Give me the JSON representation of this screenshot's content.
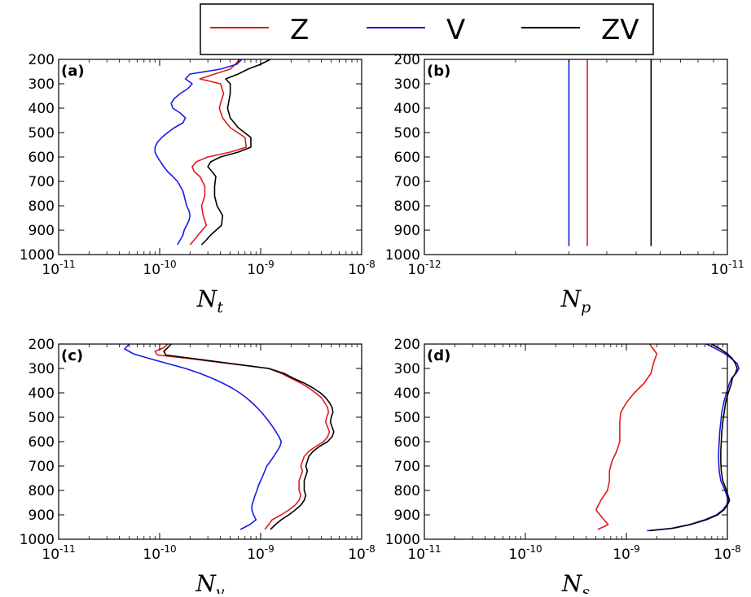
{
  "legend": {
    "items": [
      {
        "label": "Z",
        "color": "#e41a1c"
      },
      {
        "label": "V",
        "color": "#1a1ae6"
      },
      {
        "label": "ZV",
        "color": "#000000"
      }
    ]
  },
  "chart_data": [
    {
      "type": "line",
      "panel_label": "(a)",
      "xlabel": "N",
      "xlabel_sub": "t",
      "xscale": "log",
      "xlim": [
        1e-11,
        1e-08
      ],
      "xticks": [
        {
          "base": "10",
          "exp": "-11",
          "value": 1e-11
        },
        {
          "base": "10",
          "exp": "-10",
          "value": 1e-10
        },
        {
          "base": "10",
          "exp": "-9",
          "value": 1e-09
        },
        {
          "base": "10",
          "exp": "-8",
          "value": 1e-08
        }
      ],
      "ylim": [
        200,
        1000
      ],
      "yinverted": true,
      "yticks": [
        "200",
        "300",
        "400",
        "500",
        "600",
        "700",
        "800",
        "900",
        "1000"
      ],
      "series": [
        {
          "name": "Z",
          "color": "#e41a1c",
          "y": [
            200,
            220,
            240,
            260,
            280,
            300,
            340,
            380,
            400,
            440,
            480,
            520,
            560,
            580,
            600,
            620,
            640,
            660,
            680,
            720,
            760,
            800,
            840,
            880,
            920,
            940,
            960
          ],
          "x": [
            6.2e-10,
            5.6e-10,
            5e-10,
            3.5e-10,
            2.5e-10,
            4e-10,
            4.3e-10,
            4e-10,
            3.9e-10,
            4.2e-10,
            5e-10,
            7e-10,
            7.2e-10,
            5e-10,
            3e-10,
            2.3e-10,
            2.1e-10,
            2.2e-10,
            2.5e-10,
            2.8e-10,
            2.8e-10,
            2.6e-10,
            2.7e-10,
            2.9e-10,
            2.4e-10,
            2.2e-10,
            2e-10
          ]
        },
        {
          "name": "V",
          "color": "#1a1ae6",
          "y": [
            200,
            220,
            240,
            260,
            280,
            300,
            320,
            340,
            360,
            380,
            400,
            420,
            440,
            460,
            480,
            500,
            520,
            540,
            560,
            580,
            600,
            620,
            640,
            660,
            680,
            700,
            720,
            740,
            760,
            780,
            800,
            820,
            840,
            860,
            880,
            900,
            920,
            940,
            960
          ],
          "x": [
            6.5e-10,
            5.8e-10,
            4e-10,
            2e-10,
            1.8e-10,
            2.1e-10,
            1.9e-10,
            1.6e-10,
            1.4e-10,
            1.3e-10,
            1.35e-10,
            1.6e-10,
            1.8e-10,
            1.7e-10,
            1.4e-10,
            1.2e-10,
            1.05e-10,
            9.5e-11,
            9e-11,
            9e-11,
            9.5e-11,
            1.02e-10,
            1.1e-10,
            1.2e-10,
            1.35e-10,
            1.5e-10,
            1.6e-10,
            1.7e-10,
            1.75e-10,
            1.8e-10,
            1.85e-10,
            1.95e-10,
            2e-10,
            1.95e-10,
            1.85e-10,
            1.75e-10,
            1.7e-10,
            1.6e-10,
            1.5e-10
          ]
        },
        {
          "name": "ZV",
          "color": "#000000",
          "y": [
            200,
            220,
            240,
            260,
            280,
            300,
            340,
            380,
            400,
            440,
            480,
            520,
            560,
            580,
            600,
            620,
            640,
            660,
            680,
            720,
            760,
            800,
            840,
            880,
            920,
            940,
            960
          ],
          "x": [
            1.25e-09,
            1e-09,
            7.5e-10,
            6e-10,
            4.5e-10,
            5e-10,
            5e-10,
            4.8e-10,
            4.7e-10,
            5e-10,
            6e-10,
            8e-10,
            8e-10,
            6e-10,
            4e-10,
            3.2e-10,
            3e-10,
            3.3e-10,
            3.6e-10,
            3.5e-10,
            3.5e-10,
            3.7e-10,
            4.2e-10,
            4.1e-10,
            3.2e-10,
            2.9e-10,
            2.6e-10
          ]
        }
      ]
    },
    {
      "type": "line",
      "panel_label": "(b)",
      "xlabel": "N",
      "xlabel_sub": "p",
      "xscale": "log",
      "xlim": [
        1e-12,
        1e-11
      ],
      "xticks": [
        {
          "base": "10",
          "exp": "-12",
          "value": 1e-12
        },
        {
          "base": "10",
          "exp": "-11",
          "value": 1e-11
        }
      ],
      "ylim": [
        200,
        1000
      ],
      "yinverted": true,
      "yticks": [
        "200",
        "300",
        "400",
        "500",
        "600",
        "700",
        "800",
        "900",
        "1000"
      ],
      "series": [
        {
          "name": "Z",
          "color": "#e41a1c",
          "y": [
            200,
            965
          ],
          "x": [
            3.45e-12,
            3.45e-12
          ]
        },
        {
          "name": "V",
          "color": "#1a1ae6",
          "y": [
            200,
            965
          ],
          "x": [
            3e-12,
            3e-12
          ]
        },
        {
          "name": "ZV",
          "color": "#000000",
          "y": [
            200,
            965
          ],
          "x": [
            5.6e-12,
            5.6e-12
          ]
        }
      ]
    },
    {
      "type": "line",
      "panel_label": "(c)",
      "xlabel": "N",
      "xlabel_sub": "v",
      "xscale": "log",
      "xlim": [
        1e-11,
        1e-08
      ],
      "xticks": [
        {
          "base": "10",
          "exp": "-11",
          "value": 1e-11
        },
        {
          "base": "10",
          "exp": "-10",
          "value": 1e-10
        },
        {
          "base": "10",
          "exp": "-9",
          "value": 1e-09
        },
        {
          "base": "10",
          "exp": "-8",
          "value": 1e-08
        }
      ],
      "ylim": [
        200,
        1000
      ],
      "yinverted": true,
      "yticks": [
        "200",
        "300",
        "400",
        "500",
        "600",
        "700",
        "800",
        "900",
        "1000"
      ],
      "series": [
        {
          "name": "Z",
          "color": "#e41a1c",
          "y": [
            200,
            215,
            230,
            245,
            260,
            300,
            320,
            340,
            360,
            380,
            400,
            420,
            440,
            460,
            480,
            500,
            520,
            540,
            560,
            580,
            600,
            620,
            640,
            660,
            680,
            700,
            720,
            740,
            760,
            780,
            800,
            820,
            840,
            860,
            880,
            900,
            920,
            940,
            960
          ],
          "x": [
            1.2e-10,
            1.1e-10,
            9e-11,
            9.5e-11,
            2e-10,
            1.2e-09,
            1.6e-09,
            2e-09,
            2.5e-09,
            3e-09,
            3.5e-09,
            4e-09,
            4.3e-09,
            4.6e-09,
            4.7e-09,
            4.5e-09,
            4.4e-09,
            4.6e-09,
            4.8e-09,
            4.6e-09,
            4.2e-09,
            3.5e-09,
            3e-09,
            2.7e-09,
            2.6e-09,
            2.5e-09,
            2.6e-09,
            2.5e-09,
            2.4e-09,
            2.4e-09,
            2.4e-09,
            2.5e-09,
            2.4e-09,
            2.2e-09,
            1.9e-09,
            1.6e-09,
            1.3e-09,
            1.2e-09,
            1.1e-09
          ]
        },
        {
          "name": "V",
          "color": "#1a1ae6",
          "y": [
            200,
            220,
            240,
            260,
            280,
            300,
            320,
            340,
            360,
            380,
            400,
            420,
            440,
            460,
            480,
            500,
            520,
            540,
            560,
            580,
            600,
            620,
            640,
            660,
            680,
            700,
            720,
            740,
            760,
            780,
            800,
            820,
            840,
            860,
            880,
            900,
            920,
            940,
            960
          ],
          "x": [
            5e-11,
            4.5e-11,
            5.5e-11,
            8e-11,
            1.2e-10,
            1.8e-10,
            2.5e-10,
            3.3e-10,
            4.2e-10,
            5.2e-10,
            6.2e-10,
            7.2e-10,
            8.2e-10,
            9.2e-10,
            1.02e-09,
            1.12e-09,
            1.22e-09,
            1.32e-09,
            1.42e-09,
            1.52e-09,
            1.6e-09,
            1.55e-09,
            1.45e-09,
            1.35e-09,
            1.25e-09,
            1.15e-09,
            1.1e-09,
            1.05e-09,
            1e-09,
            9.5e-10,
            9.2e-10,
            8.8e-10,
            8.5e-10,
            8.2e-10,
            8.2e-10,
            8.5e-10,
            9e-10,
            7.8e-10,
            6.3e-10
          ]
        },
        {
          "name": "ZV",
          "color": "#000000",
          "y": [
            200,
            215,
            230,
            245,
            260,
            300,
            320,
            340,
            360,
            380,
            400,
            420,
            440,
            460,
            480,
            500,
            520,
            540,
            560,
            580,
            600,
            620,
            640,
            660,
            680,
            700,
            720,
            740,
            760,
            780,
            800,
            820,
            840,
            860,
            880,
            900,
            920,
            940,
            960
          ],
          "x": [
            1.3e-10,
            1.2e-10,
            1.1e-10,
            1.15e-10,
            2.2e-10,
            1.2e-09,
            1.7e-09,
            2.1e-09,
            2.7e-09,
            3.3e-09,
            3.9e-09,
            4.4e-09,
            4.8e-09,
            5.1e-09,
            5.2e-09,
            5e-09,
            4.9e-09,
            5.1e-09,
            5.3e-09,
            5.1e-09,
            4.6e-09,
            3.8e-09,
            3.3e-09,
            3e-09,
            2.9e-09,
            2.8e-09,
            2.9e-09,
            2.8e-09,
            2.7e-09,
            2.7e-09,
            2.7e-09,
            2.8e-09,
            2.7e-09,
            2.5e-09,
            2.2e-09,
            1.9e-09,
            1.6e-09,
            1.4e-09,
            1.25e-09
          ]
        }
      ]
    },
    {
      "type": "line",
      "panel_label": "(d)",
      "xlabel": "N",
      "xlabel_sub": "s",
      "xscale": "log",
      "xlim": [
        1e-11,
        1e-08
      ],
      "xticks": [
        {
          "base": "10",
          "exp": "-11",
          "value": 1e-11
        },
        {
          "base": "10",
          "exp": "-10",
          "value": 1e-10
        },
        {
          "base": "10",
          "exp": "-9",
          "value": 1e-09
        },
        {
          "base": "10",
          "exp": "-8",
          "value": 1e-08
        }
      ],
      "ylim": [
        200,
        1000
      ],
      "yinverted": true,
      "yticks": [
        "200",
        "300",
        "400",
        "500",
        "600",
        "700",
        "800",
        "900",
        "1000"
      ],
      "series": [
        {
          "name": "Z",
          "color": "#e41a1c",
          "y": [
            200,
            240,
            280,
            320,
            360,
            400,
            440,
            480,
            520,
            560,
            600,
            640,
            680,
            720,
            760,
            800,
            840,
            880,
            920,
            940,
            960
          ],
          "x": [
            1.7e-09,
            2e-09,
            1.85e-09,
            1.75e-09,
            1.5e-09,
            1.2e-09,
            1e-09,
            8.8e-10,
            8.6e-10,
            8.6e-10,
            8.6e-10,
            8e-10,
            7.2e-10,
            6.8e-10,
            6.8e-10,
            6.5e-10,
            5.6e-10,
            5e-10,
            6e-10,
            6.6e-10,
            5.2e-10
          ]
        },
        {
          "name": "V",
          "color": "#1a1ae6",
          "y": [
            200,
            220,
            240,
            260,
            280,
            300,
            320,
            340,
            360,
            400,
            440,
            480,
            520,
            560,
            600,
            640,
            680,
            720,
            760,
            800,
            840,
            860,
            880,
            900,
            920,
            940,
            955,
            965
          ],
          "x": [
            6.2e-09,
            7.8e-09,
            9.5e-09,
            1.1e-08,
            1.25e-08,
            1.3e-08,
            1.22e-08,
            1.1e-08,
            1.05e-08,
            9.8e-09,
            9.2e-09,
            8.8e-09,
            8.6e-09,
            8.4e-09,
            8.3e-09,
            8.2e-09,
            8.2e-09,
            8.3e-09,
            8.6e-09,
            9.5e-09,
            1.02e-08,
            9.8e-09,
            9e-09,
            7.8e-09,
            6e-09,
            4.2e-09,
            2.8e-09,
            1.6e-09
          ]
        },
        {
          "name": "ZV",
          "color": "#000000",
          "y": [
            200,
            220,
            240,
            260,
            280,
            300,
            320,
            340,
            360,
            400,
            440,
            480,
            520,
            560,
            600,
            640,
            680,
            720,
            760,
            800,
            840,
            860,
            880,
            900,
            920,
            940,
            955,
            965
          ],
          "x": [
            7e-09,
            8.5e-09,
            1e-08,
            1.12e-08,
            1.2e-08,
            1.25e-08,
            1.2e-08,
            1.12e-08,
            1.1e-08,
            1.02e-08,
            9.6e-09,
            9.3e-09,
            9e-09,
            8.8e-09,
            8.7e-09,
            8.6e-09,
            8.6e-09,
            8.7e-09,
            9e-09,
            9.8e-09,
            1.05e-08,
            1e-08,
            9.2e-09,
            8e-09,
            6.2e-09,
            4.3e-09,
            2.9e-09,
            1.7e-09
          ]
        }
      ]
    }
  ]
}
